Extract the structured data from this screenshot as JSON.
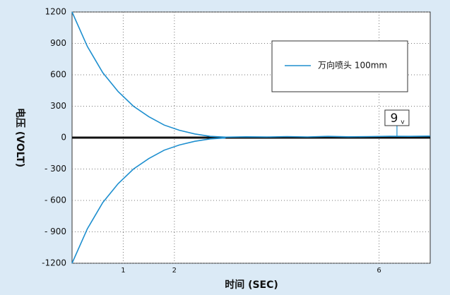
{
  "chart_data": {
    "type": "line",
    "xlabel": "时间 (SEC)",
    "ylabel": "电压 (VOLT)",
    "x": [
      0,
      0.3,
      0.6,
      0.9,
      1.2,
      1.5,
      1.8,
      2.1,
      2.4,
      2.7,
      3.0,
      3.4,
      3.8,
      4.2,
      4.6,
      5.0,
      5.4,
      5.8,
      6.2,
      6.6,
      7.0
    ],
    "series": [
      {
        "name": "万向喷头 100mm",
        "color": "#1e8fcf",
        "values": [
          1200,
          870,
          620,
          440,
          300,
          200,
          120,
          70,
          35,
          12,
          5,
          8,
          6,
          10,
          7,
          12,
          8,
          10,
          13,
          12,
          15
        ]
      },
      {
        "color": "#1e8fcf",
        "values": [
          -1200,
          -870,
          -620,
          -440,
          -300,
          -200,
          -120,
          -70,
          -35,
          -12,
          -3,
          null,
          null,
          null,
          null,
          null,
          null,
          null,
          null,
          null,
          null
        ]
      }
    ],
    "xlim": [
      0,
      7
    ],
    "xticks": [
      1,
      2,
      6
    ],
    "ylim": [
      -1200,
      1200
    ],
    "yticks": [
      1200,
      900,
      600,
      300,
      0,
      {
        "value": -300,
        "label": "- 300"
      },
      {
        "value": -600,
        "label": "- 600"
      },
      {
        "value": -900,
        "label": "- 900"
      },
      -1200
    ],
    "grid": true,
    "legend": "upper right",
    "annotation": {
      "text": "9",
      "sub": "v",
      "x": 6.35
    }
  }
}
